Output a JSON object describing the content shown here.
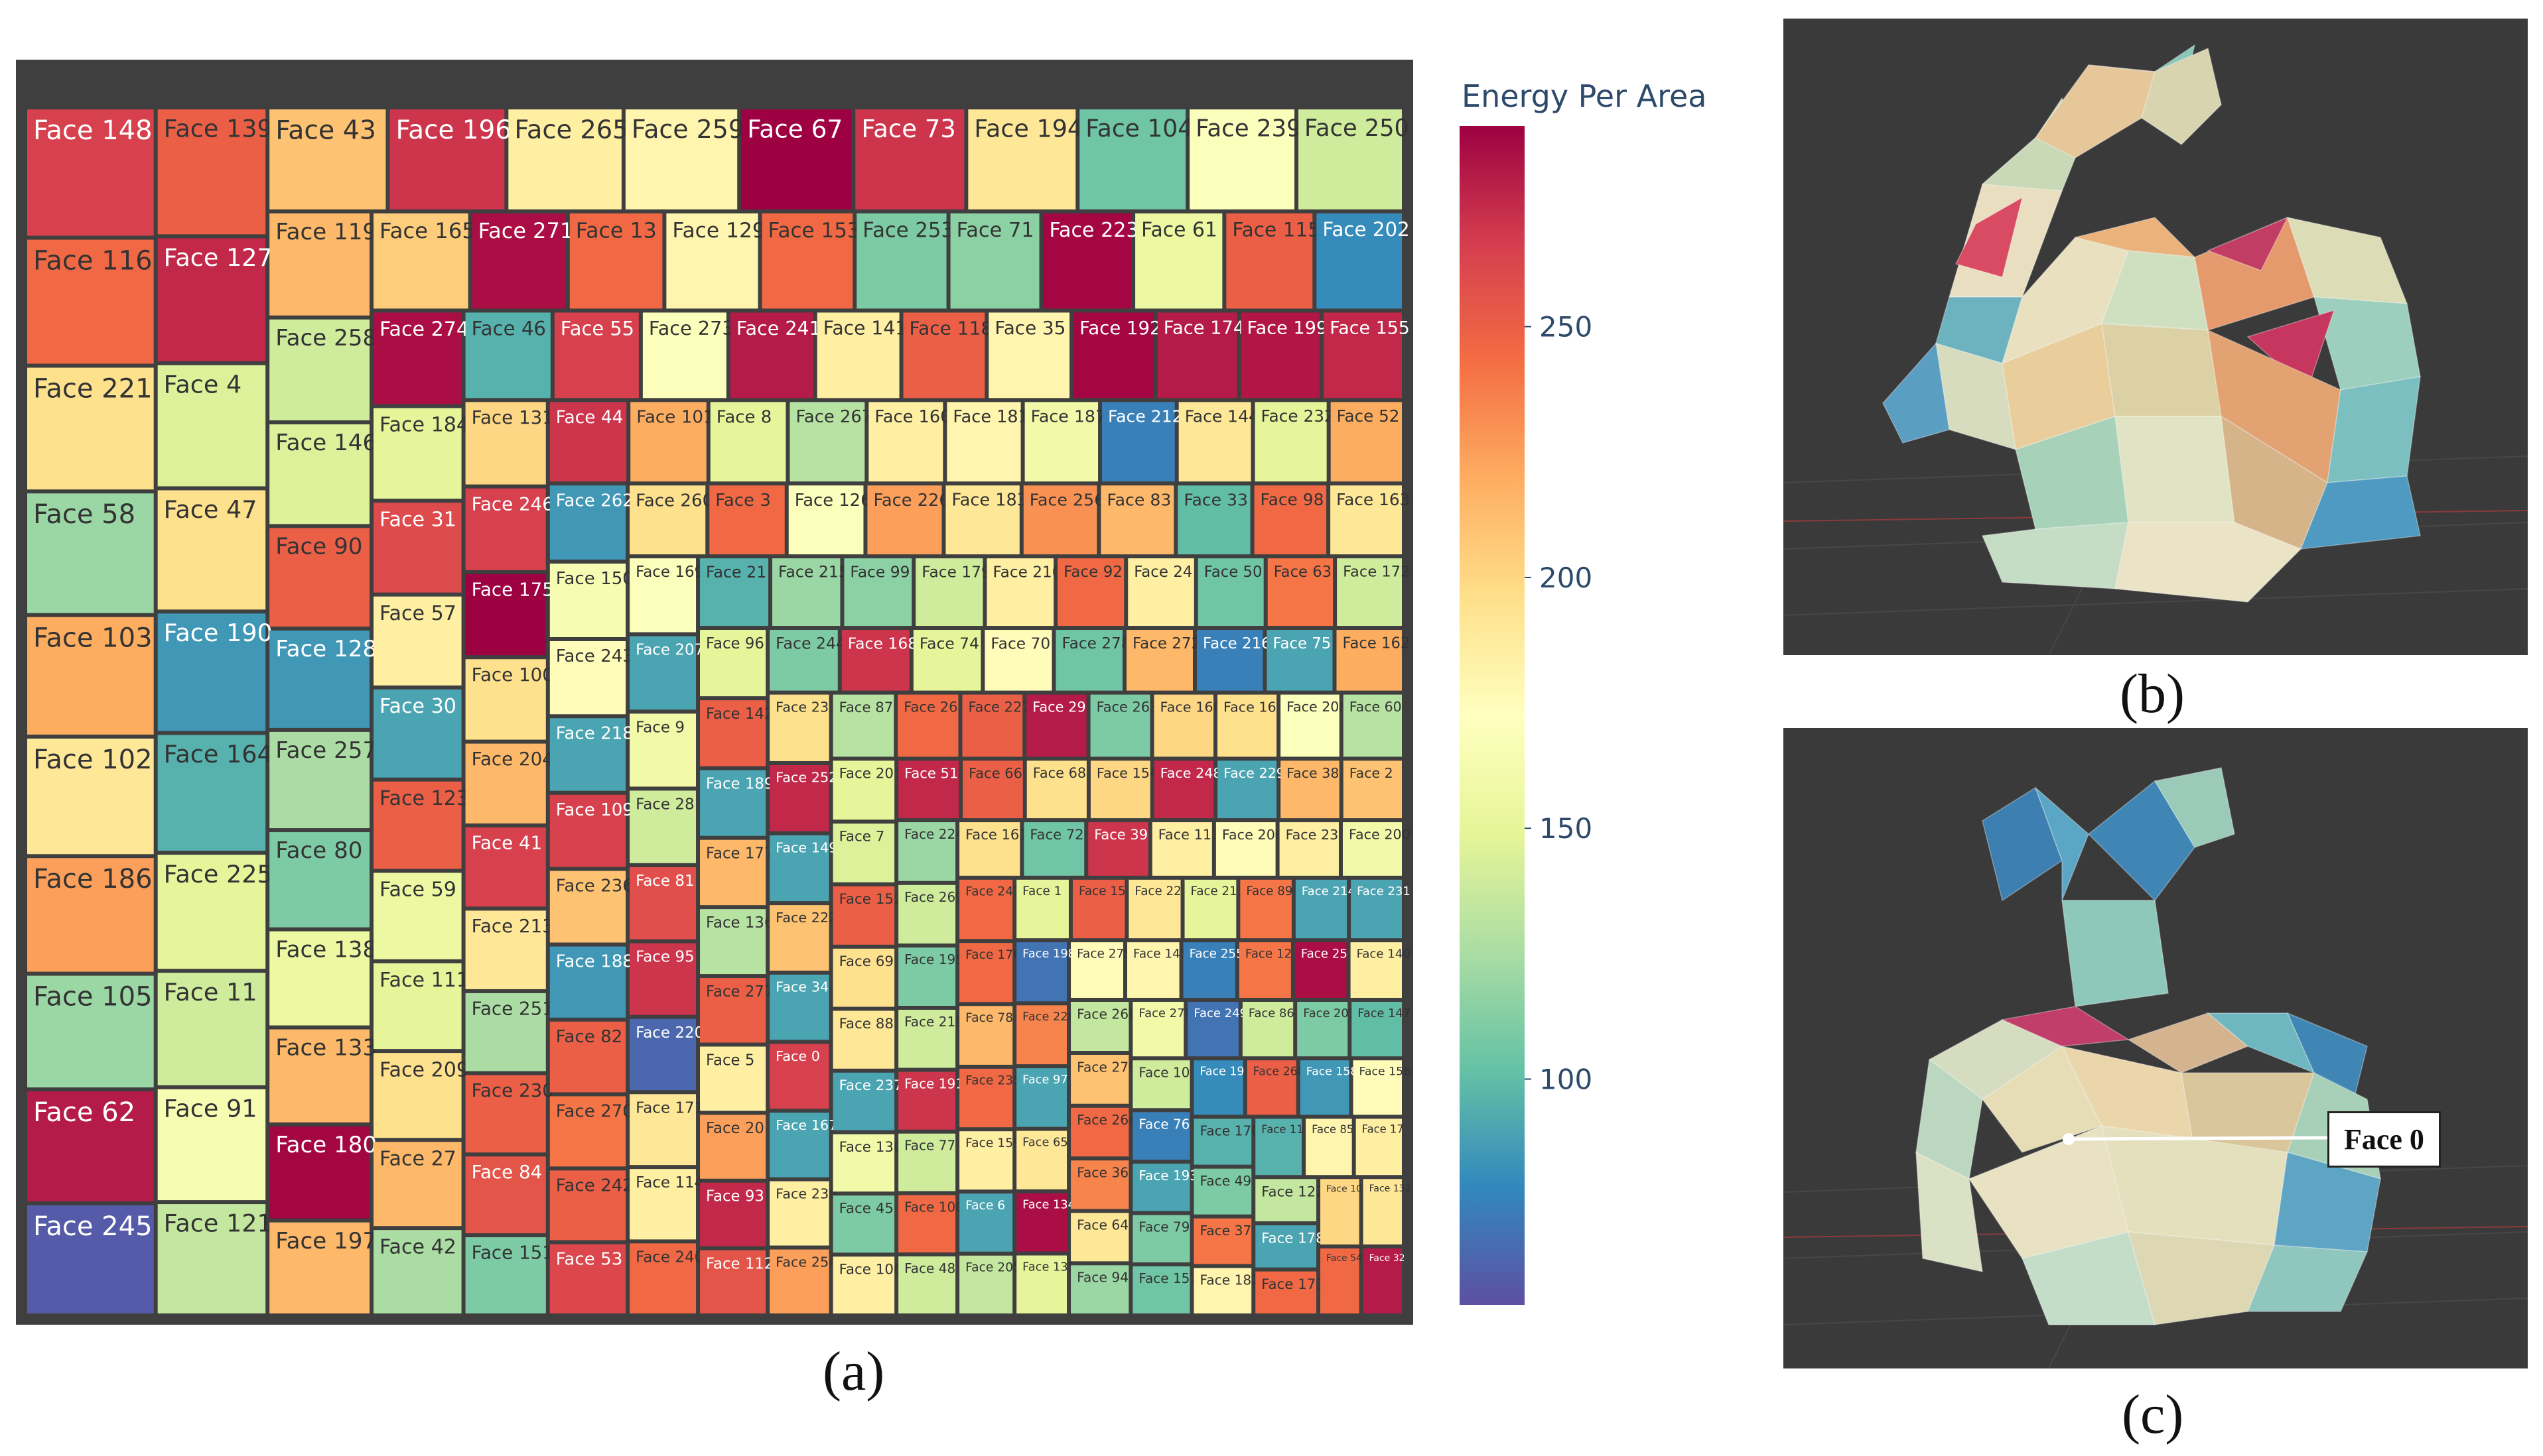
{
  "chart_data": {
    "type": "treemap",
    "metric": "Energy Per Area",
    "color_scale": {
      "title": "Energy Per Area",
      "ticks": [
        100,
        150,
        200,
        250
      ],
      "range": [
        55,
        290
      ]
    },
    "cells": [
      {
        "label": "Face 148",
        "value": 265
      },
      {
        "label": "Face 116",
        "value": 245
      },
      {
        "label": "Face 221",
        "value": 195
      },
      {
        "label": "Face 58",
        "value": 120
      },
      {
        "label": "Face 103",
        "value": 220
      },
      {
        "label": "Face 102",
        "value": 190
      },
      {
        "label": "Face 186",
        "value": 225
      },
      {
        "label": "Face 105",
        "value": 120
      },
      {
        "label": "Face 62",
        "value": 280
      },
      {
        "label": "Face 245",
        "value": 60
      },
      {
        "label": "Face 139",
        "value": 250
      },
      {
        "label": "Face 127",
        "value": 275
      },
      {
        "label": "Face 4",
        "value": 145
      },
      {
        "label": "Face 47",
        "value": 195
      },
      {
        "label": "Face 190",
        "value": 85
      },
      {
        "label": "Face 164",
        "value": 95
      },
      {
        "label": "Face 225",
        "value": 150
      },
      {
        "label": "Face 11",
        "value": 140
      },
      {
        "label": "Face 91",
        "value": 165
      },
      {
        "label": "Face 121",
        "value": 135
      },
      {
        "label": "Face 43",
        "value": 210
      },
      {
        "label": "Face 196",
        "value": 270
      },
      {
        "label": "Face 265",
        "value": 185
      },
      {
        "label": "Face 259",
        "value": 180
      },
      {
        "label": "Face 67",
        "value": 290
      },
      {
        "label": "Face 73",
        "value": 270
      },
      {
        "label": "Face 194",
        "value": 190
      },
      {
        "label": "Face 104",
        "value": 105
      },
      {
        "label": "Face 239",
        "value": 170
      },
      {
        "label": "Face 250",
        "value": 140
      },
      {
        "label": "Face 119",
        "value": 215
      },
      {
        "label": "Face 258",
        "value": 140
      },
      {
        "label": "Face 146",
        "value": 145
      },
      {
        "label": "Face 90",
        "value": 250
      },
      {
        "label": "Face 128",
        "value": 85
      },
      {
        "label": "Face 257",
        "value": 125
      },
      {
        "label": "Face 80",
        "value": 110
      },
      {
        "label": "Face 138",
        "value": 155
      },
      {
        "label": "Face 133",
        "value": 215
      },
      {
        "label": "Face 180",
        "value": 288
      },
      {
        "label": "Face 197",
        "value": 215
      },
      {
        "label": "Face 165",
        "value": 205
      },
      {
        "label": "Face 271",
        "value": 285
      },
      {
        "label": "Face 13",
        "value": 245
      },
      {
        "label": "Face 129",
        "value": 180
      },
      {
        "label": "Face 153",
        "value": 245
      },
      {
        "label": "Face 253",
        "value": 110
      },
      {
        "label": "Face 71",
        "value": 115
      },
      {
        "label": "Face 223",
        "value": 288
      },
      {
        "label": "Face 61",
        "value": 155
      },
      {
        "label": "Face 115",
        "value": 250
      },
      {
        "label": "Face 202",
        "value": 80
      },
      {
        "label": "Face 274",
        "value": 285
      },
      {
        "label": "Face 184",
        "value": 150
      },
      {
        "label": "Face 31",
        "value": 260
      },
      {
        "label": "Face 57",
        "value": 185
      },
      {
        "label": "Face 30",
        "value": 90
      },
      {
        "label": "Face 123",
        "value": 250
      },
      {
        "label": "Face 59",
        "value": 155
      },
      {
        "label": "Face 111",
        "value": 150
      },
      {
        "label": "Face 209",
        "value": 195
      },
      {
        "label": "Face 27",
        "value": 215
      },
      {
        "label": "Face 42",
        "value": 125
      },
      {
        "label": "Face 46",
        "value": 95
      },
      {
        "label": "Face 55",
        "value": 265
      },
      {
        "label": "Face 273",
        "value": 170
      },
      {
        "label": "Face 241",
        "value": 280
      },
      {
        "label": "Face 141",
        "value": 185
      },
      {
        "label": "Face 118",
        "value": 250
      },
      {
        "label": "Face 35",
        "value": 180
      },
      {
        "label": "Face 192",
        "value": 288
      },
      {
        "label": "Face 174",
        "value": 280
      },
      {
        "label": "Face 199",
        "value": 282
      },
      {
        "label": "Face 155",
        "value": 275
      },
      {
        "label": "Face 131",
        "value": 200
      },
      {
        "label": "Face 246",
        "value": 265
      },
      {
        "label": "Face 175",
        "value": 290
      },
      {
        "label": "Face 100",
        "value": 195
      },
      {
        "label": "Face 204",
        "value": 215
      },
      {
        "label": "Face 41",
        "value": 265
      },
      {
        "label": "Face 213",
        "value": 190
      },
      {
        "label": "Face 251",
        "value": 125
      },
      {
        "label": "Face 230",
        "value": 250
      },
      {
        "label": "Face 84",
        "value": 255
      },
      {
        "label": "Face 151",
        "value": 110
      },
      {
        "label": "Face 44",
        "value": 270
      },
      {
        "label": "Face 101",
        "value": 220
      },
      {
        "label": "Face 8",
        "value": 150
      },
      {
        "label": "Face 267",
        "value": 130
      },
      {
        "label": "Face 160",
        "value": 185
      },
      {
        "label": "Face 181",
        "value": 180
      },
      {
        "label": "Face 187",
        "value": 160
      },
      {
        "label": "Face 212",
        "value": 75
      },
      {
        "label": "Face 144",
        "value": 190
      },
      {
        "label": "Face 232",
        "value": 150
      },
      {
        "label": "Face 52",
        "value": 220
      },
      {
        "label": "Face 262",
        "value": 85
      },
      {
        "label": "Face 150",
        "value": 165
      },
      {
        "label": "Face 243",
        "value": 175
      },
      {
        "label": "Face 218",
        "value": 90
      },
      {
        "label": "Face 109",
        "value": 265
      },
      {
        "label": "Face 236",
        "value": 210
      },
      {
        "label": "Face 188",
        "value": 85
      },
      {
        "label": "Face 82",
        "value": 250
      },
      {
        "label": "Face 270",
        "value": 240
      },
      {
        "label": "Face 242",
        "value": 250
      },
      {
        "label": "Face 53",
        "value": 262
      },
      {
        "label": "Face 260",
        "value": 195
      },
      {
        "label": "Face 3",
        "value": 245
      },
      {
        "label": "Face 126",
        "value": 170
      },
      {
        "label": "Face 226",
        "value": 225
      },
      {
        "label": "Face 183",
        "value": 190
      },
      {
        "label": "Face 256",
        "value": 230
      },
      {
        "label": "Face 83",
        "value": 215
      },
      {
        "label": "Face 33",
        "value": 100
      },
      {
        "label": "Face 98",
        "value": 245
      },
      {
        "label": "Face 163",
        "value": 190
      },
      {
        "label": "Face 169",
        "value": 170
      },
      {
        "label": "Face 207",
        "value": 90
      },
      {
        "label": "Face 9",
        "value": 160
      },
      {
        "label": "Face 28",
        "value": 140
      },
      {
        "label": "Face 81",
        "value": 258
      },
      {
        "label": "Face 95",
        "value": 270
      },
      {
        "label": "Face 220",
        "value": 65
      },
      {
        "label": "Face 171",
        "value": 190
      },
      {
        "label": "Face 114",
        "value": 185
      },
      {
        "label": "Face 240",
        "value": 245
      },
      {
        "label": "Face 21",
        "value": 95
      },
      {
        "label": "Face 215",
        "value": 120
      },
      {
        "label": "Face 99",
        "value": 115
      },
      {
        "label": "Face 179",
        "value": 140
      },
      {
        "label": "Face 210",
        "value": 185
      },
      {
        "label": "Face 92",
        "value": 245
      },
      {
        "label": "Face 24",
        "value": 185
      },
      {
        "label": "Face 50",
        "value": 105
      },
      {
        "label": "Face 63",
        "value": 240
      },
      {
        "label": "Face 172",
        "value": 140
      },
      {
        "label": "Face 96",
        "value": 150
      },
      {
        "label": "Face 142",
        "value": 250
      },
      {
        "label": "Face 189",
        "value": 90
      },
      {
        "label": "Face 177",
        "value": 215
      },
      {
        "label": "Face 136",
        "value": 130
      },
      {
        "label": "Face 277",
        "value": 250
      },
      {
        "label": "Face 5",
        "value": 185
      },
      {
        "label": "Face 20",
        "value": 225
      },
      {
        "label": "Face 93",
        "value": 275
      },
      {
        "label": "Face 112",
        "value": 255
      },
      {
        "label": "Face 244",
        "value": 110
      },
      {
        "label": "Face 168",
        "value": 270
      },
      {
        "label": "Face 74",
        "value": 150
      },
      {
        "label": "Face 70",
        "value": 175
      },
      {
        "label": "Face 278",
        "value": 105
      },
      {
        "label": "Face 272",
        "value": 215
      },
      {
        "label": "Face 216",
        "value": 75
      },
      {
        "label": "Face 75",
        "value": 90
      },
      {
        "label": "Face 162",
        "value": 220
      },
      {
        "label": "Face 233",
        "value": 195
      },
      {
        "label": "Face 252",
        "value": 275
      },
      {
        "label": "Face 149",
        "value": 90
      },
      {
        "label": "Face 222",
        "value": 210
      },
      {
        "label": "Face 34",
        "value": 90
      },
      {
        "label": "Face 0",
        "value": 265
      },
      {
        "label": "Face 167",
        "value": 90
      },
      {
        "label": "Face 238",
        "value": 185
      },
      {
        "label": "Face 254",
        "value": 225
      },
      {
        "label": "Face 87",
        "value": 130
      },
      {
        "label": "Face 26",
        "value": 245
      },
      {
        "label": "Face 227",
        "value": 250
      },
      {
        "label": "Face 29",
        "value": 280
      },
      {
        "label": "Face 263",
        "value": 110
      },
      {
        "label": "Face 166",
        "value": 200
      },
      {
        "label": "Face 16",
        "value": 195
      },
      {
        "label": "Face 208",
        "value": 170
      },
      {
        "label": "Face 60",
        "value": 130
      },
      {
        "label": "Face 201",
        "value": 150
      },
      {
        "label": "Face 7",
        "value": 145
      },
      {
        "label": "Face 152",
        "value": 250
      },
      {
        "label": "Face 69",
        "value": 195
      },
      {
        "label": "Face 88",
        "value": 190
      },
      {
        "label": "Face 237",
        "value": 90
      },
      {
        "label": "Face 130",
        "value": 160
      },
      {
        "label": "Face 45",
        "value": 110
      },
      {
        "label": "Face 106",
        "value": 185
      },
      {
        "label": "Face 51",
        "value": 275
      },
      {
        "label": "Face 66",
        "value": 250
      },
      {
        "label": "Face 68",
        "value": 195
      },
      {
        "label": "Face 154",
        "value": 200
      },
      {
        "label": "Face 248",
        "value": 275
      },
      {
        "label": "Face 229",
        "value": 90
      },
      {
        "label": "Face 38",
        "value": 215
      },
      {
        "label": "Face 2",
        "value": 210
      },
      {
        "label": "Face 224",
        "value": 120
      },
      {
        "label": "Face 269",
        "value": 140
      },
      {
        "label": "Face 195",
        "value": 110
      },
      {
        "label": "Face 219",
        "value": 140
      },
      {
        "label": "Face 191",
        "value": 270
      },
      {
        "label": "Face 77",
        "value": 140
      },
      {
        "label": "Face 108",
        "value": 245
      },
      {
        "label": "Face 48",
        "value": 140
      },
      {
        "label": "Face 161",
        "value": 195
      },
      {
        "label": "Face 72",
        "value": 105
      },
      {
        "label": "Face 39",
        "value": 270
      },
      {
        "label": "Face 113",
        "value": 185
      },
      {
        "label": "Face 206",
        "value": 175
      },
      {
        "label": "Face 23",
        "value": 185
      },
      {
        "label": "Face 200",
        "value": 160
      },
      {
        "label": "Face 247",
        "value": 245
      },
      {
        "label": "Face 176",
        "value": 245
      },
      {
        "label": "Face 78",
        "value": 215
      },
      {
        "label": "Face 235",
        "value": 245
      },
      {
        "label": "Face 159",
        "value": 185
      },
      {
        "label": "Face 6",
        "value": 90
      },
      {
        "label": "Face 205",
        "value": 135
      },
      {
        "label": "Face 1",
        "value": 150
      },
      {
        "label": "Face 15",
        "value": 250
      },
      {
        "label": "Face 22",
        "value": 190
      },
      {
        "label": "Face 211",
        "value": 150
      },
      {
        "label": "Face 89",
        "value": 240
      },
      {
        "label": "Face 214",
        "value": 90
      },
      {
        "label": "Face 231",
        "value": 90
      },
      {
        "label": "Face 198",
        "value": 70
      },
      {
        "label": "Face 228",
        "value": 235
      },
      {
        "label": "Face 97",
        "value": 90
      },
      {
        "label": "Face 65",
        "value": 190
      },
      {
        "label": "Face 134",
        "value": 285
      },
      {
        "label": "Face 135",
        "value": 150
      },
      {
        "label": "Face 275",
        "value": 175
      },
      {
        "label": "Face 145",
        "value": 180
      },
      {
        "label": "Face 255",
        "value": 75
      },
      {
        "label": "Face 12",
        "value": 240
      },
      {
        "label": "Face 25",
        "value": 285
      },
      {
        "label": "Face 140",
        "value": 185
      },
      {
        "label": "Face 266",
        "value": 135
      },
      {
        "label": "Face 279",
        "value": 210
      },
      {
        "label": "Face 264",
        "value": 245
      },
      {
        "label": "Face 36",
        "value": 235
      },
      {
        "label": "Face 64",
        "value": 190
      },
      {
        "label": "Face 94",
        "value": 120
      },
      {
        "label": "Face 276",
        "value": 160
      },
      {
        "label": "Face 249",
        "value": 70
      },
      {
        "label": "Face 86",
        "value": 140
      },
      {
        "label": "Face 203",
        "value": 110
      },
      {
        "label": "Face 147",
        "value": 100
      },
      {
        "label": "Face 10",
        "value": 140
      },
      {
        "label": "Face 76",
        "value": 75
      },
      {
        "label": "Face 193",
        "value": 90
      },
      {
        "label": "Face 79",
        "value": 110
      },
      {
        "label": "Face 157",
        "value": 105
      },
      {
        "label": "Face 19",
        "value": 80
      },
      {
        "label": "Face 268",
        "value": 250
      },
      {
        "label": "Face 158",
        "value": 85
      },
      {
        "label": "Face 156",
        "value": 175
      },
      {
        "label": "Face 170",
        "value": 95
      },
      {
        "label": "Face 49",
        "value": 110
      },
      {
        "label": "Face 37",
        "value": 240
      },
      {
        "label": "Face 182",
        "value": 180
      },
      {
        "label": "Face 117",
        "value": 95
      },
      {
        "label": "Face 85",
        "value": 180
      },
      {
        "label": "Face 17",
        "value": 185
      },
      {
        "label": "Face 122",
        "value": 135
      },
      {
        "label": "Face 178",
        "value": 90
      },
      {
        "label": "Face 173",
        "value": 245
      },
      {
        "label": "Face 107",
        "value": 200
      },
      {
        "label": "Face 132",
        "value": 190
      },
      {
        "label": "Face 54",
        "value": 245
      },
      {
        "label": "Face 32",
        "value": 280
      }
    ]
  },
  "captions": {
    "a": "(a)",
    "b": "(b)",
    "c": "(c)"
  },
  "annotation": {
    "face_label": "Face 0"
  },
  "colors": {
    "panel_bg": "#3f3f3f",
    "render_bg": "#3a3a3a",
    "title": "#2e4a6b"
  }
}
